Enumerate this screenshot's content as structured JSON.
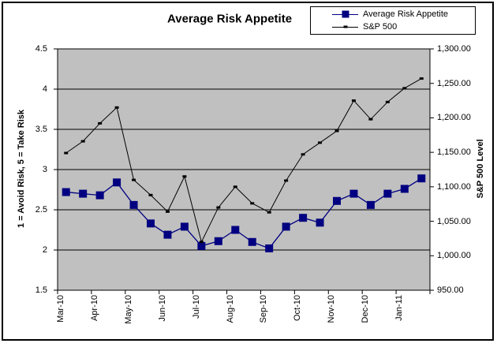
{
  "chart_data": {
    "type": "line",
    "title": "Average Risk Appetite",
    "points_per_month": 2,
    "x_tick_labels": [
      "Mar-10",
      "Apr-10",
      "May-10",
      "Jun-10",
      "Jul-10",
      "Aug-10",
      "Sep-10",
      "Oct-10",
      "Nov-10",
      "Dec-10",
      "Jan-11"
    ],
    "series": [
      {
        "name": "Average Risk Appetite",
        "axis": "left",
        "color": "#000080",
        "marker": "square",
        "marker_size": 10,
        "values": [
          2.72,
          2.7,
          2.68,
          2.84,
          2.56,
          2.33,
          2.19,
          2.29,
          2.05,
          2.11,
          2.25,
          2.1,
          2.02,
          2.29,
          2.4,
          2.34,
          2.61,
          2.7,
          2.56,
          2.7,
          2.76,
          2.89
        ]
      },
      {
        "name": "S&P 500",
        "axis": "right",
        "color": "#000000",
        "marker": "small-square",
        "marker_size": 3,
        "values": [
          1149,
          1166,
          1192,
          1215,
          1110,
          1088,
          1064,
          1115,
          1020,
          1070,
          1100,
          1076,
          1063,
          1109,
          1147,
          1164,
          1181,
          1225,
          1198,
          1223,
          1243,
          1257
        ]
      }
    ],
    "left_axis": {
      "title": "1 = Avoid Risk, 5 = Take Risk",
      "min": 1.5,
      "max": 4.5,
      "step": 0.5,
      "tick_labels": [
        "4.5",
        "4",
        "3.5",
        "3",
        "2.5",
        "2",
        "1.5"
      ]
    },
    "right_axis": {
      "title": "S&P 500 Level",
      "min": 950,
      "max": 1300,
      "step": 50,
      "tick_labels": [
        "1,300.00",
        "1,250.00",
        "1,200.00",
        "1,150.00",
        "1,100.00",
        "1,050.00",
        "1,000.00",
        "950.00"
      ]
    },
    "plot_bg_color": "#C0C0C0",
    "grid": true,
    "legend_position": "top-right"
  }
}
